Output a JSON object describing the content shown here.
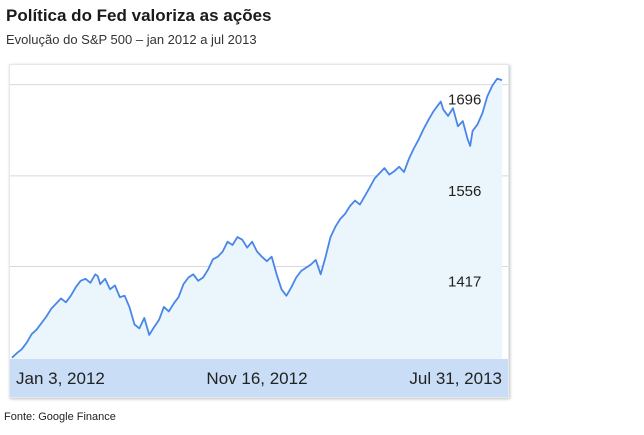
{
  "title": "Política do Fed valoriza as ações",
  "subtitle": "Evolução do S&P 500 – jan 2012 a jul 2013",
  "source": "Fonte: Google Finance",
  "colors": {
    "line": "#4a86e8",
    "fill": "#eaf6fb",
    "xbar": "#c9def6",
    "grid": "#d4d9e2"
  },
  "chart_data": {
    "type": "area",
    "y_ticks": [
      {
        "value": 1696,
        "label": "1696"
      },
      {
        "value": 1556,
        "label": "1556"
      },
      {
        "value": 1417,
        "label": "1417"
      }
    ],
    "x_labels": [
      "Jan 3, 2012",
      "Nov 16, 2012",
      "Jul 31, 2013"
    ],
    "ylim": [
      1275,
      1720
    ],
    "grid": true,
    "series": [
      {
        "values": [
          [
            0,
            1277
          ],
          [
            0.01,
            1284
          ],
          [
            0.02,
            1290
          ],
          [
            0.03,
            1300
          ],
          [
            0.04,
            1313
          ],
          [
            0.05,
            1320
          ],
          [
            0.06,
            1330
          ],
          [
            0.07,
            1340
          ],
          [
            0.08,
            1352
          ],
          [
            0.09,
            1360
          ],
          [
            0.1,
            1368
          ],
          [
            0.11,
            1362
          ],
          [
            0.12,
            1372
          ],
          [
            0.13,
            1385
          ],
          [
            0.14,
            1395
          ],
          [
            0.15,
            1398
          ],
          [
            0.16,
            1392
          ],
          [
            0.17,
            1405
          ],
          [
            0.175,
            1402
          ],
          [
            0.18,
            1390
          ],
          [
            0.19,
            1398
          ],
          [
            0.2,
            1382
          ],
          [
            0.21,
            1388
          ],
          [
            0.22,
            1370
          ],
          [
            0.23,
            1372
          ],
          [
            0.24,
            1354
          ],
          [
            0.25,
            1328
          ],
          [
            0.26,
            1322
          ],
          [
            0.27,
            1338
          ],
          [
            0.28,
            1312
          ],
          [
            0.29,
            1324
          ],
          [
            0.3,
            1335
          ],
          [
            0.31,
            1355
          ],
          [
            0.32,
            1348
          ],
          [
            0.33,
            1360
          ],
          [
            0.34,
            1370
          ],
          [
            0.35,
            1390
          ],
          [
            0.36,
            1400
          ],
          [
            0.37,
            1405
          ],
          [
            0.38,
            1395
          ],
          [
            0.39,
            1400
          ],
          [
            0.4,
            1412
          ],
          [
            0.41,
            1428
          ],
          [
            0.42,
            1432
          ],
          [
            0.43,
            1440
          ],
          [
            0.44,
            1455
          ],
          [
            0.45,
            1450
          ],
          [
            0.46,
            1462
          ],
          [
            0.47,
            1458
          ],
          [
            0.48,
            1446
          ],
          [
            0.49,
            1455
          ],
          [
            0.5,
            1440
          ],
          [
            0.51,
            1432
          ],
          [
            0.52,
            1425
          ],
          [
            0.53,
            1432
          ],
          [
            0.54,
            1405
          ],
          [
            0.55,
            1382
          ],
          [
            0.56,
            1372
          ],
          [
            0.57,
            1385
          ],
          [
            0.58,
            1400
          ],
          [
            0.59,
            1410
          ],
          [
            0.6,
            1415
          ],
          [
            0.61,
            1420
          ],
          [
            0.62,
            1427
          ],
          [
            0.63,
            1405
          ],
          [
            0.64,
            1432
          ],
          [
            0.65,
            1462
          ],
          [
            0.66,
            1478
          ],
          [
            0.67,
            1490
          ],
          [
            0.68,
            1498
          ],
          [
            0.69,
            1510
          ],
          [
            0.7,
            1518
          ],
          [
            0.71,
            1512
          ],
          [
            0.72,
            1525
          ],
          [
            0.73,
            1538
          ],
          [
            0.74,
            1552
          ],
          [
            0.75,
            1560
          ],
          [
            0.76,
            1568
          ],
          [
            0.77,
            1558
          ],
          [
            0.78,
            1563
          ],
          [
            0.79,
            1570
          ],
          [
            0.8,
            1562
          ],
          [
            0.81,
            1582
          ],
          [
            0.82,
            1598
          ],
          [
            0.83,
            1612
          ],
          [
            0.84,
            1628
          ],
          [
            0.85,
            1642
          ],
          [
            0.86,
            1655
          ],
          [
            0.87,
            1665
          ],
          [
            0.875,
            1670
          ],
          [
            0.88,
            1658
          ],
          [
            0.89,
            1648
          ],
          [
            0.9,
            1660
          ],
          [
            0.91,
            1632
          ],
          [
            0.92,
            1640
          ],
          [
            0.93,
            1612
          ],
          [
            0.935,
            1602
          ],
          [
            0.94,
            1625
          ],
          [
            0.95,
            1635
          ],
          [
            0.96,
            1652
          ],
          [
            0.97,
            1678
          ],
          [
            0.98,
            1694
          ],
          [
            0.99,
            1705
          ],
          [
            1.0,
            1703
          ]
        ]
      }
    ]
  }
}
